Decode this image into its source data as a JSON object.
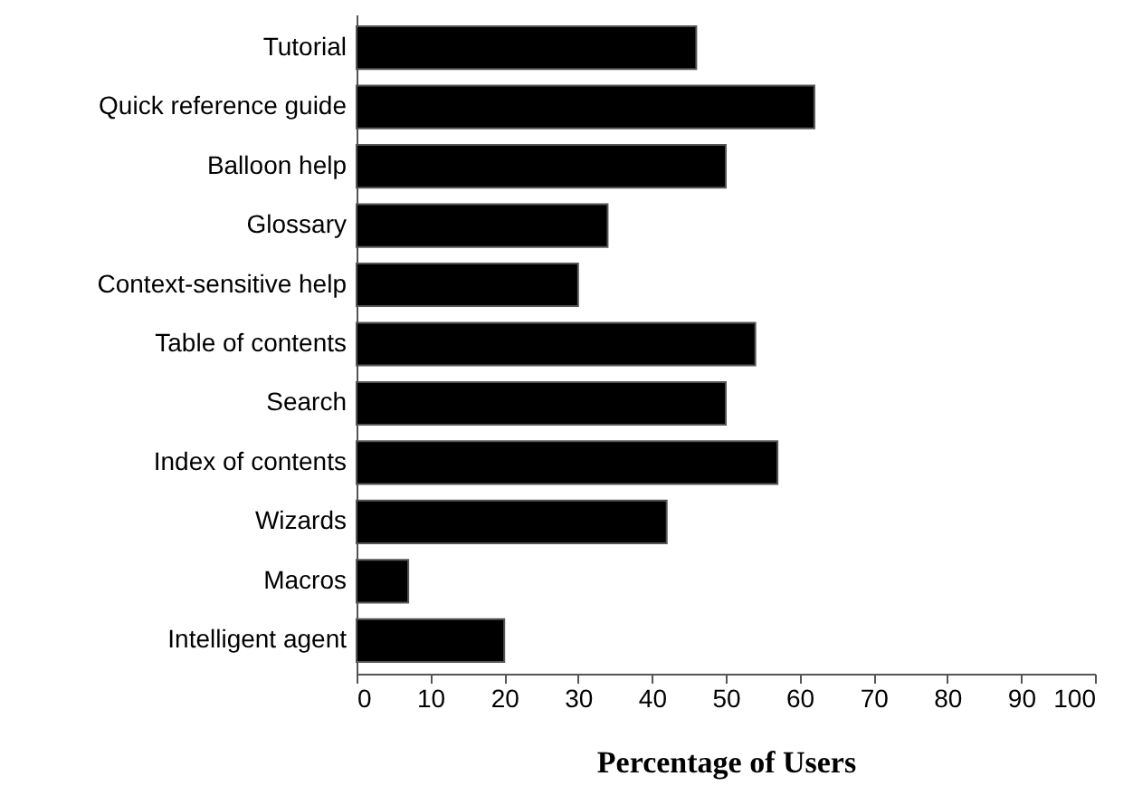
{
  "chart_data": {
    "type": "bar",
    "orientation": "horizontal",
    "xlabel": "Percentage of Users",
    "categories": [
      "Tutorial",
      "Quick reference guide",
      "Balloon help",
      "Glossary",
      "Context-sensitive help",
      "Table of contents",
      "Search",
      "Index of contents",
      "Wizards",
      "Macros",
      "Intelligent agent"
    ],
    "values": [
      46,
      62,
      50,
      34,
      30,
      54,
      50,
      57,
      42,
      7,
      20
    ],
    "color": "#000000",
    "xlim": [
      0,
      100
    ],
    "xticks": [
      0,
      10,
      20,
      30,
      40,
      50,
      60,
      70,
      80,
      90,
      100
    ],
    "grid": false
  }
}
